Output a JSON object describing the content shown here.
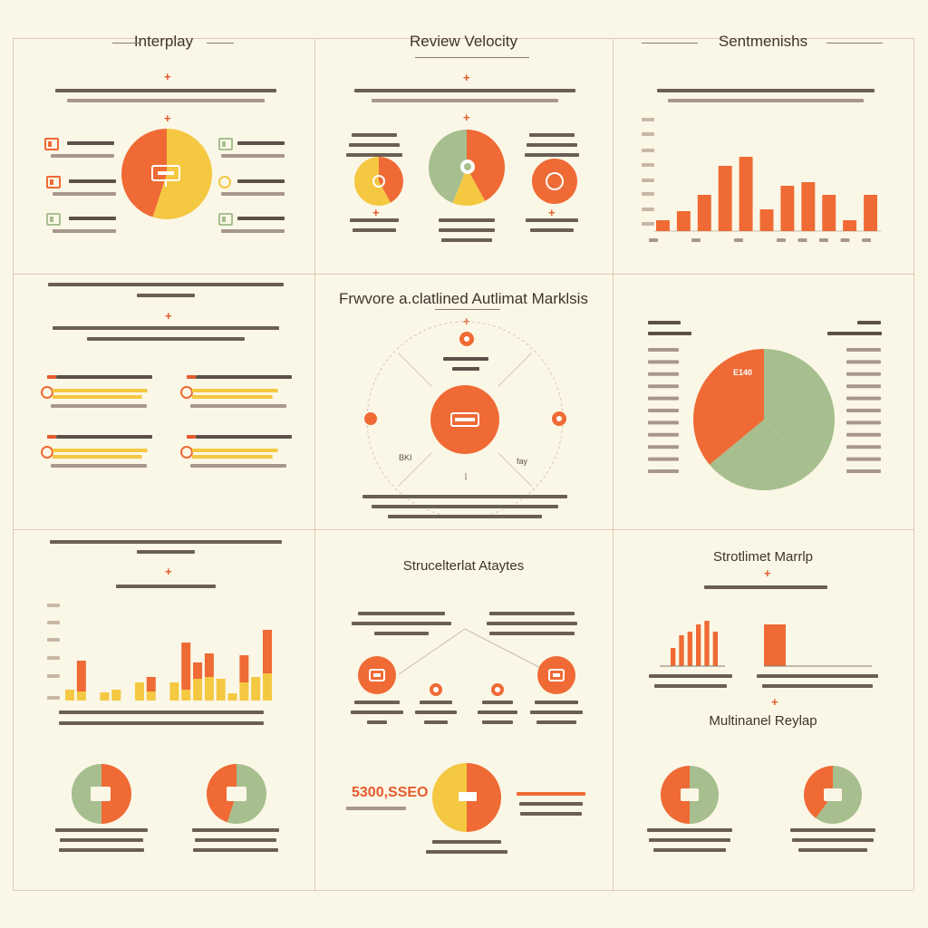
{
  "colors": {
    "orange": "#ef6a35",
    "yellow": "#f5c842",
    "green": "#a7bf8f",
    "cream": "#fbf7e6",
    "rule": "#c9b7a5"
  },
  "panels": {
    "interplay": {
      "title": "Interplay"
    },
    "review_velocity": {
      "title": "Review Velocity"
    },
    "sentiment": {
      "title": "Sentmenishs"
    },
    "center": {
      "title": "Frwvore a.clatlined  Autlimat Marklsis",
      "callouts": [
        "BKI",
        "fay"
      ]
    },
    "structural": {
      "title": "Strucelterlat Ataytes"
    },
    "sentiment_map": {
      "title": "Strotlimet Marrlp",
      "sub_title": "Multinanel Reylap"
    },
    "bottom_mid": {
      "amount": "5300,SSEO"
    },
    "right_mid": {
      "slice_label": "E140"
    }
  },
  "chart_data": [
    {
      "id": "interplay-pie",
      "type": "pie",
      "slices": [
        {
          "value": 0.55,
          "color": "#f5c842"
        },
        {
          "value": 0.45,
          "color": "#ef6a35"
        }
      ]
    },
    {
      "id": "velocity-pie-left",
      "type": "pie",
      "slices": [
        {
          "value": 0.42,
          "color": "#ef6a35"
        },
        {
          "value": 0.58,
          "color": "#f5c842"
        }
      ]
    },
    {
      "id": "velocity-pie-center",
      "type": "pie",
      "slices": [
        {
          "value": 0.42,
          "color": "#ef6a35"
        },
        {
          "value": 0.14,
          "color": "#f5c842"
        },
        {
          "value": 0.44,
          "color": "#a7bf8f"
        }
      ]
    },
    {
      "id": "velocity-pie-right",
      "type": "pie",
      "slices": [
        {
          "value": 1.0,
          "color": "#ef6a35"
        }
      ]
    },
    {
      "id": "sentiment-bars",
      "type": "bar",
      "values": [
        12,
        22,
        40,
        72,
        82,
        24,
        50,
        54,
        40,
        12,
        40
      ],
      "ylim": [
        0,
        90
      ],
      "color": "#ef6a35"
    },
    {
      "id": "right-mid-pie",
      "type": "pie",
      "slices": [
        {
          "value": 0.38,
          "color": "#a7bf8f"
        },
        {
          "value": 0.26,
          "color": "#a7bf8f"
        },
        {
          "value": 0.36,
          "color": "#ef6a35"
        }
      ]
    },
    {
      "id": "interplay-hbars",
      "type": "bar",
      "values": [
        95,
        86,
        95,
        86
      ],
      "ylim": [
        0,
        100
      ],
      "color": "#f5c842"
    },
    {
      "id": "stacked-bars",
      "type": "bar",
      "series": [
        {
          "name": "",
          "values": [
            12,
            10,
            0,
            9,
            12,
            0,
            20,
            10,
            0,
            20,
            12,
            24,
            26,
            24,
            8,
            20,
            26,
            30
          ],
          "color": "#f5c842"
        },
        {
          "name": "",
          "values": [
            0,
            34,
            0,
            0,
            0,
            0,
            0,
            16,
            0,
            0,
            52,
            18,
            26,
            0,
            0,
            30,
            0,
            48
          ],
          "color": "#ef6a35"
        }
      ],
      "ylim": [
        0,
        90
      ]
    },
    {
      "id": "bottom-pie-left",
      "type": "pie",
      "slices": [
        {
          "value": 0.5,
          "color": "#ef6a35"
        },
        {
          "value": 0.5,
          "color": "#a7bf8f"
        }
      ]
    },
    {
      "id": "bottom-pie-right",
      "type": "pie",
      "slices": [
        {
          "value": 0.55,
          "color": "#a7bf8f"
        },
        {
          "value": 0.45,
          "color": "#ef6a35"
        }
      ]
    },
    {
      "id": "bottom-mid-pie",
      "type": "pie",
      "slices": [
        {
          "value": 0.5,
          "color": "#ef6a35"
        },
        {
          "value": 0.5,
          "color": "#f5c842"
        }
      ]
    },
    {
      "id": "map-bars",
      "type": "bar",
      "values": [
        20,
        34,
        38,
        46,
        50,
        38
      ],
      "ylim": [
        0,
        60
      ],
      "color": "#ef6a35"
    },
    {
      "id": "map-pie-left",
      "type": "pie",
      "slices": [
        {
          "value": 0.5,
          "color": "#a7bf8f"
        },
        {
          "value": 0.5,
          "color": "#ef6a35"
        }
      ]
    },
    {
      "id": "map-pie-right",
      "type": "pie",
      "slices": [
        {
          "value": 0.6,
          "color": "#a7bf8f"
        },
        {
          "value": 0.4,
          "color": "#ef6a35"
        }
      ]
    }
  ]
}
